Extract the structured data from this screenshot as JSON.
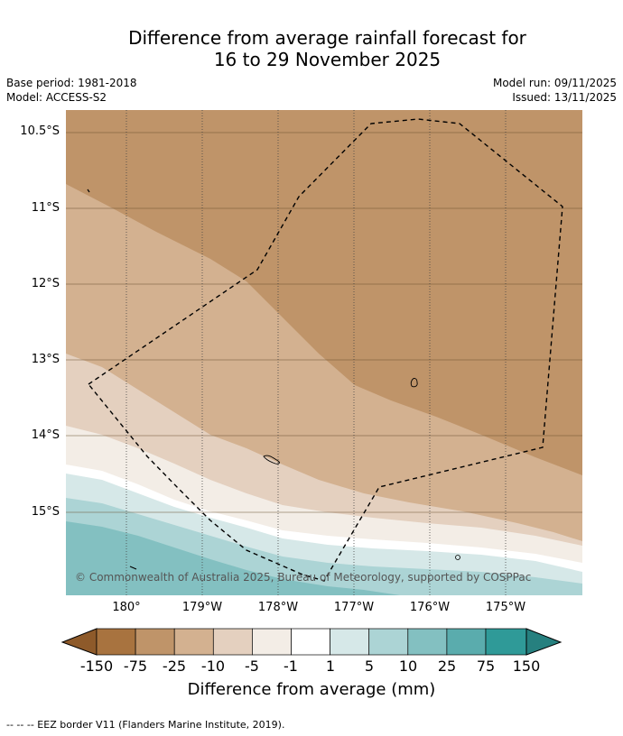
{
  "title": {
    "line1": "Difference from average rainfall forecast for",
    "line2": "16 to 29 November 2025"
  },
  "meta": {
    "base_period": "Base period: 1981-2018",
    "model": "Model: ACCESS-S2",
    "model_run": "Model run: 09/11/2025",
    "issued": "Issued: 13/11/2025"
  },
  "map": {
    "lat_labels": [
      "10.5°S",
      "11°S",
      "12°S",
      "13°S",
      "14°S",
      "15°S"
    ],
    "lon_labels": [
      "180°",
      "179°W",
      "178°W",
      "177°W",
      "176°W",
      "175°W"
    ],
    "copyright": "© Commonwealth of Australia 2025, Bureau of Meteorology, supported by COSPPac"
  },
  "colorbar": {
    "labels": [
      "-150",
      "-75",
      "-25",
      "-10",
      "-5",
      "-1",
      "1",
      "5",
      "10",
      "25",
      "75",
      "150"
    ],
    "colors": [
      "#8e5a2a",
      "#a8733f",
      "#bf9469",
      "#d3b190",
      "#e4d0bf",
      "#f3ede6",
      "#ffffff",
      "#d6e8e8",
      "#acd4d5",
      "#83c0c1",
      "#5aacad",
      "#2f9a98",
      "#26807f"
    ],
    "title": "Difference from average (mm)"
  },
  "legend_note": "--  --  -- EEZ border V11 (Flanders Marine Institute, 2019)."
}
